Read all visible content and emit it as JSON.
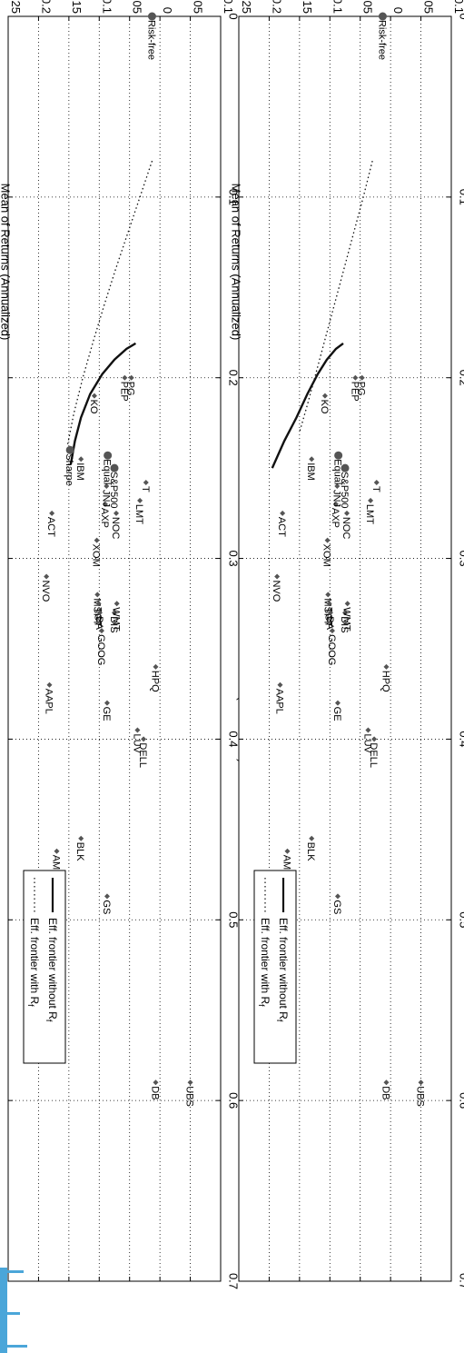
{
  "chart_data": [
    {
      "type": "scatter",
      "title": "",
      "xlabel": "Standard Deviation of Returns (Annualized)",
      "ylabel": "Mean of Returns (Annualized)",
      "xlim": [
        0,
        0.7
      ],
      "ylim": [
        -0.1,
        0.25
      ],
      "xticks": [
        "0",
        "0.1",
        "0.2",
        "0.3",
        "0.4",
        "0.5",
        "0.6",
        "0.7"
      ],
      "yticks": [
        "-0.1",
        "-0.05",
        "0",
        "0.05",
        "0.1",
        "0.15",
        "0.2",
        "0.25"
      ],
      "grid": true,
      "legend_position": "bottom-right",
      "legend": [
        {
          "text": "Eff. frontier without R",
          "sub": "f",
          "style": "solid"
        },
        {
          "text": "Eff. frontier with R",
          "sub": "f",
          "style": "dotted"
        }
      ],
      "frontier_without_rf": {
        "x": [
          0.181,
          0.184,
          0.19,
          0.198,
          0.209,
          0.222,
          0.235,
          0.248
        ],
        "y": [
          0.04,
          0.055,
          0.075,
          0.095,
          0.115,
          0.13,
          0.14,
          0.147
        ]
      },
      "frontier_with_rf": {
        "x": [
          0.08,
          0.1,
          0.12,
          0.14,
          0.16,
          0.18,
          0.2,
          0.22,
          0.237
        ],
        "y": [
          0.013,
          0.033,
          0.053,
          0.073,
          0.092,
          0.11,
          0.127,
          0.142,
          0.152
        ]
      },
      "points": [
        {
          "label": "NVO",
          "x": 0.31,
          "y": 0.187
        },
        {
          "label": "AAPL",
          "x": 0.37,
          "y": 0.182
        },
        {
          "label": "ACT",
          "x": 0.275,
          "y": 0.178
        },
        {
          "label": "AMZN",
          "x": 0.462,
          "y": 0.17
        },
        {
          "label": "BLK",
          "x": 0.455,
          "y": 0.13
        },
        {
          "label": "Sharpe",
          "x": 0.24,
          "y": 0.148,
          "marker": "circle"
        },
        {
          "label": "IBM",
          "x": 0.245,
          "y": 0.13
        },
        {
          "label": "GS",
          "x": 0.487,
          "y": 0.087
        },
        {
          "label": "DB",
          "x": 0.59,
          "y": 0.007
        },
        {
          "label": "UBS",
          "x": 0.59,
          "y": -0.05
        },
        {
          "label": "KO",
          "x": 0.21,
          "y": 0.108
        },
        {
          "label": "XOM",
          "x": 0.29,
          "y": 0.104
        },
        {
          "label": "MSFT",
          "x": 0.32,
          "y": 0.103
        },
        {
          "label": "TGT",
          "x": 0.325,
          "y": 0.101
        },
        {
          "label": "BA",
          "x": 0.33,
          "y": 0.099
        },
        {
          "label": "GOOG",
          "x": 0.34,
          "y": 0.096
        },
        {
          "label": "AXP",
          "x": 0.27,
          "y": 0.09
        },
        {
          "label": "JNJ",
          "x": 0.26,
          "y": 0.088
        },
        {
          "label": "Equal",
          "x": 0.243,
          "y": 0.086,
          "marker": "circle"
        },
        {
          "label": "GE",
          "x": 0.38,
          "y": 0.087
        },
        {
          "label": "S&P500",
          "x": 0.25,
          "y": 0.075,
          "marker": "circle"
        },
        {
          "label": "NOC",
          "x": 0.275,
          "y": 0.072
        },
        {
          "label": "DIS",
          "x": 0.33,
          "y": 0.075
        },
        {
          "label": "WMT",
          "x": 0.325,
          "y": 0.071
        },
        {
          "label": "PEP",
          "x": 0.2,
          "y": 0.058
        },
        {
          "label": "PG",
          "x": 0.2,
          "y": 0.047
        },
        {
          "label": "LUV",
          "x": 0.395,
          "y": 0.037
        },
        {
          "label": "DELL",
          "x": 0.4,
          "y": 0.027
        },
        {
          "label": "LMT",
          "x": 0.268,
          "y": 0.033
        },
        {
          "label": "T",
          "x": 0.258,
          "y": 0.023
        },
        {
          "label": "HPQ",
          "x": 0.36,
          "y": 0.007
        },
        {
          "label": "Risk-free",
          "x": 0.0,
          "y": 0.013,
          "marker": "circle"
        }
      ]
    },
    {
      "type": "scatter",
      "title": "",
      "xlabel": "Standard Deviation of Returns (Annualized)",
      "ylabel": "Mean of Returns (Annualized)",
      "xlim": [
        0,
        0.7
      ],
      "ylim": [
        -0.1,
        0.25
      ],
      "xticks": [
        "0",
        "0.1",
        "0.2",
        "0.3",
        "0.4",
        "0.5",
        "0.6",
        "0.7"
      ],
      "yticks": [
        "-0.1",
        "-0.05",
        "0",
        "0.05",
        "0.1",
        "0.15",
        "0.2",
        "0.25"
      ],
      "grid": true,
      "legend_position": "bottom-right",
      "legend": [
        {
          "text": "Eff. frontier without R",
          "sub": "f",
          "style": "solid"
        },
        {
          "text": "Eff. frontier with R",
          "sub": "f",
          "style": "dotted"
        }
      ],
      "frontier_without_rf": {
        "x": [
          0.181,
          0.184,
          0.19,
          0.198,
          0.209,
          0.222,
          0.235,
          0.25
        ],
        "y": [
          0.078,
          0.09,
          0.105,
          0.12,
          0.137,
          0.155,
          0.175,
          0.195
        ]
      },
      "frontier_with_rf": {
        "x": [
          0.08,
          0.1,
          0.12,
          0.14,
          0.16,
          0.18,
          0.2,
          0.215,
          0.23
        ],
        "y": [
          0.03,
          0.045,
          0.061,
          0.077,
          0.093,
          0.109,
          0.125,
          0.137,
          0.15
        ]
      },
      "points": [
        {
          "label": "NVO",
          "x": 0.31,
          "y": 0.187
        },
        {
          "label": "AAPL",
          "x": 0.37,
          "y": 0.182
        },
        {
          "label": "ACT",
          "x": 0.275,
          "y": 0.178
        },
        {
          "label": "AMZN",
          "x": 0.462,
          "y": 0.17
        },
        {
          "label": "BLK",
          "x": 0.455,
          "y": 0.13
        },
        {
          "label": "IBM",
          "x": 0.245,
          "y": 0.13
        },
        {
          "label": "GS",
          "x": 0.487,
          "y": 0.087
        },
        {
          "label": "DB",
          "x": 0.59,
          "y": 0.007
        },
        {
          "label": "UBS",
          "x": 0.59,
          "y": -0.05
        },
        {
          "label": "KO",
          "x": 0.21,
          "y": 0.108
        },
        {
          "label": "XOM",
          "x": 0.29,
          "y": 0.104
        },
        {
          "label": "MSFT",
          "x": 0.32,
          "y": 0.103
        },
        {
          "label": "TGT",
          "x": 0.325,
          "y": 0.101
        },
        {
          "label": "BA",
          "x": 0.33,
          "y": 0.099
        },
        {
          "label": "GOOG",
          "x": 0.34,
          "y": 0.096
        },
        {
          "label": "AXP",
          "x": 0.27,
          "y": 0.09
        },
        {
          "label": "JNJ",
          "x": 0.26,
          "y": 0.088
        },
        {
          "label": "Equal",
          "x": 0.243,
          "y": 0.086,
          "marker": "circle"
        },
        {
          "label": "GE",
          "x": 0.38,
          "y": 0.087
        },
        {
          "label": "S&P500",
          "x": 0.25,
          "y": 0.075,
          "marker": "circle"
        },
        {
          "label": "NOC",
          "x": 0.275,
          "y": 0.072
        },
        {
          "label": "DIS",
          "x": 0.33,
          "y": 0.075
        },
        {
          "label": "WMT",
          "x": 0.325,
          "y": 0.071
        },
        {
          "label": "PEP",
          "x": 0.2,
          "y": 0.058
        },
        {
          "label": "PG",
          "x": 0.2,
          "y": 0.047
        },
        {
          "label": "LUV",
          "x": 0.395,
          "y": 0.037
        },
        {
          "label": "DELL",
          "x": 0.4,
          "y": 0.027
        },
        {
          "label": "LMT",
          "x": 0.268,
          "y": 0.033
        },
        {
          "label": "T",
          "x": 0.258,
          "y": 0.023
        },
        {
          "label": "HPQ",
          "x": 0.36,
          "y": 0.007
        },
        {
          "label": "Risk-free",
          "x": 0.0,
          "y": 0.013,
          "marker": "circle"
        }
      ]
    }
  ],
  "colors": {
    "marker": "#555555",
    "frontier": "#111111",
    "grid": "#000000",
    "accent": "#4ba6d9"
  }
}
